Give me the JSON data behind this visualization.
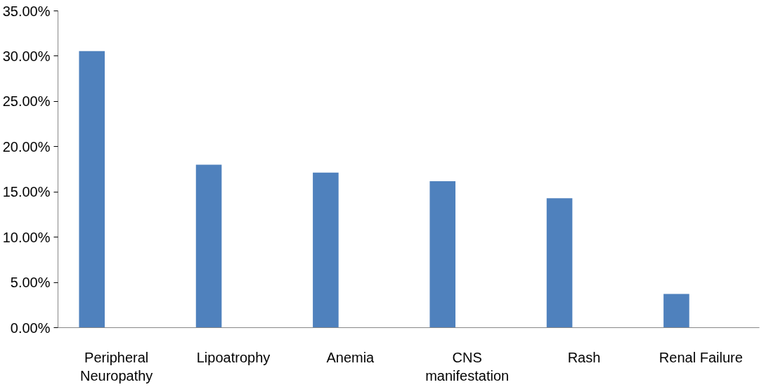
{
  "chart_data": {
    "type": "bar",
    "categories": [
      "Peripheral Neuropathy",
      "Lipoatrophy",
      "Anemia",
      "CNS manifestation",
      "Rash",
      "Renal Failure"
    ],
    "values": [
      30.56,
      18.0,
      17.14,
      16.19,
      14.29,
      3.73
    ],
    "color": "#4f81bd",
    "ylim": [
      0,
      35
    ],
    "yticks": [
      {
        "value": 0,
        "label": "0.00%"
      },
      {
        "value": 5,
        "label": "5.00%"
      },
      {
        "value": 10,
        "label": "10.00%"
      },
      {
        "value": 15,
        "label": "15.00%"
      },
      {
        "value": 20,
        "label": "20.00%"
      },
      {
        "value": 25,
        "label": "25.00%"
      },
      {
        "value": 30,
        "label": "30.00%"
      },
      {
        "value": 35,
        "label": "35.00%"
      }
    ],
    "grid": false
  }
}
